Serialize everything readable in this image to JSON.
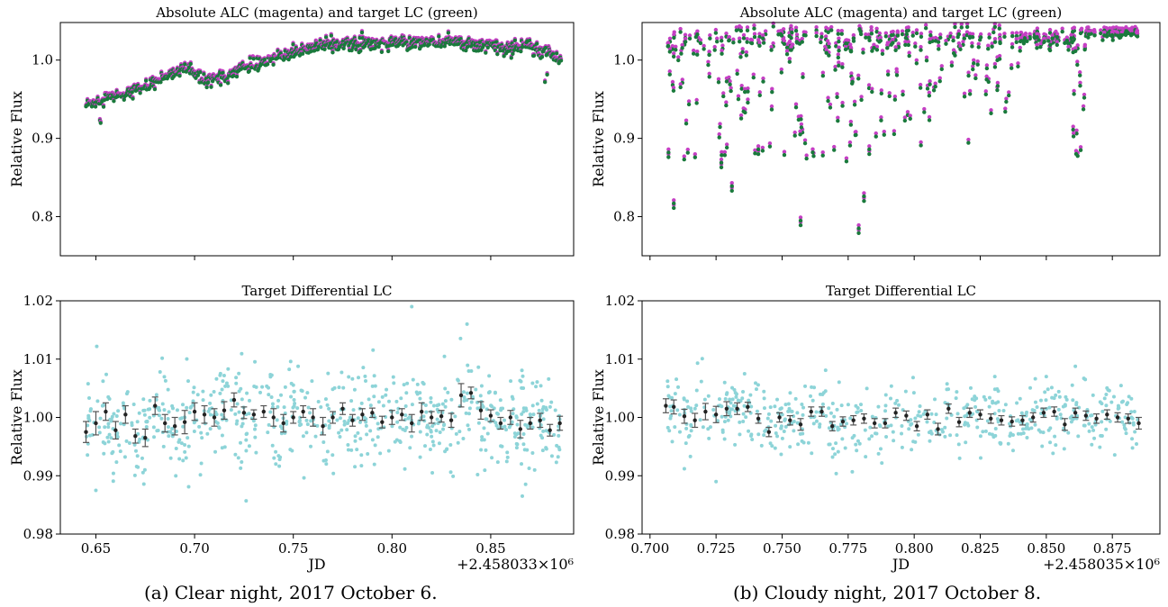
{
  "colors": {
    "target": "#1a7a3c",
    "alc": "#c53fc4",
    "diff_points": "#8dd4d8",
    "binned": "#222222",
    "axis": "#000000"
  },
  "captions": {
    "left": "(a) Clear night, 2017 October 6.",
    "right": "(b) Cloudy night, 2017 October 8."
  },
  "chart_data": [
    {
      "type": "scatter",
      "title": "Absolute ALC (magenta) and target LC (green)",
      "xlabel": "",
      "ylabel": "Relative Flux",
      "xlim": [
        0.632,
        0.892
      ],
      "ylim": [
        0.75,
        1.048
      ],
      "xticks": [
        0.65,
        0.7,
        0.75,
        0.8,
        0.85
      ],
      "xticklabels_visible": false,
      "yticks": [
        0.8,
        0.9,
        1.0
      ],
      "yticklabels": [
        "0.8",
        "0.9",
        "1.0"
      ],
      "grid": false,
      "series": [
        {
          "name": "magenta",
          "color": "#c53fc4",
          "trend": {
            "x": [
              0.645,
              0.655,
              0.665,
              0.675,
              0.685,
              0.695,
              0.705,
              0.715,
              0.725,
              0.735,
              0.745,
              0.755,
              0.765,
              0.775,
              0.785,
              0.795,
              0.805,
              0.815,
              0.825,
              0.835,
              0.845,
              0.855,
              0.865,
              0.875,
              0.885
            ],
            "y": [
              0.942,
              0.952,
              0.957,
              0.966,
              0.978,
              0.99,
              0.972,
              0.978,
              0.99,
              0.998,
              1.005,
              1.012,
              1.018,
              1.021,
              1.02,
              1.02,
              1.022,
              1.023,
              1.022,
              1.022,
              1.019,
              1.014,
              1.018,
              1.01,
              1.003
            ]
          },
          "n_points": 650
        },
        {
          "name": "green",
          "color": "#1a7a3c",
          "trend": {
            "x": [
              0.645,
              0.655,
              0.665,
              0.675,
              0.685,
              0.695,
              0.705,
              0.715,
              0.725,
              0.735,
              0.745,
              0.755,
              0.765,
              0.775,
              0.785,
              0.795,
              0.805,
              0.815,
              0.825,
              0.835,
              0.845,
              0.855,
              0.865,
              0.875,
              0.885
            ],
            "y": [
              0.942,
              0.952,
              0.957,
              0.966,
              0.978,
              0.99,
              0.972,
              0.978,
              0.99,
              0.998,
              1.005,
              1.012,
              1.018,
              1.021,
              1.02,
              1.02,
              1.022,
              1.023,
              1.022,
              1.022,
              1.019,
              1.014,
              1.018,
              1.01,
              1.003
            ]
          },
          "n_points": 650
        }
      ]
    },
    {
      "type": "scatter",
      "title": "Absolute ALC (magenta) and target LC (green)",
      "xlabel": "",
      "ylabel": "Relative Flux",
      "xlim": [
        0.697,
        0.893
      ],
      "ylim": [
        0.75,
        1.048
      ],
      "xticks": [
        0.7,
        0.725,
        0.75,
        0.775,
        0.8,
        0.825,
        0.85,
        0.875
      ],
      "xticklabels_visible": false,
      "yticks": [
        0.8,
        0.9,
        1.0
      ],
      "yticklabels": [
        "0.8",
        "0.9",
        "1.0"
      ],
      "grid": false,
      "series": [
        {
          "name": "magenta",
          "color": "#c53fc4",
          "upper_envelope_y": 1.035,
          "min_y": 0.777,
          "n_points": 500
        },
        {
          "name": "green",
          "color": "#1a7a3c",
          "upper_envelope_y": 1.035,
          "min_y": 0.78,
          "n_points": 500
        }
      ],
      "cloud_dips": [
        {
          "x": 0.707,
          "y": 0.876
        },
        {
          "x": 0.709,
          "y": 0.811
        },
        {
          "x": 0.727,
          "y": 0.863
        },
        {
          "x": 0.731,
          "y": 0.833
        },
        {
          "x": 0.741,
          "y": 0.88
        },
        {
          "x": 0.757,
          "y": 0.789
        },
        {
          "x": 0.779,
          "y": 0.779
        },
        {
          "x": 0.781,
          "y": 0.82
        },
        {
          "x": 0.783,
          "y": 0.88
        }
      ]
    },
    {
      "type": "scatter",
      "title": "Target Differential LC",
      "xlabel": "JD",
      "ylabel": "Relative Flux",
      "offset_label": "+2.458033×10⁶",
      "xlim": [
        0.632,
        0.892
      ],
      "ylim": [
        0.98,
        1.02
      ],
      "xticks": [
        0.65,
        0.7,
        0.75,
        0.8,
        0.85
      ],
      "xticklabels": [
        "0.65",
        "0.70",
        "0.75",
        "0.80",
        "0.85"
      ],
      "yticks": [
        0.98,
        0.99,
        1.0,
        1.01,
        1.02
      ],
      "yticklabels": [
        "0.98",
        "0.99",
        "1.00",
        "1.01",
        "1.02"
      ],
      "grid": false,
      "points": {
        "color": "#8dd4d8",
        "center_y": 1.0,
        "spread_y": 0.004,
        "n_points": 700,
        "outliers": [
          {
            "x": 0.81,
            "y": 1.019
          },
          {
            "x": 0.838,
            "y": 1.016
          },
          {
            "x": 0.866,
            "y": 0.9865
          },
          {
            "x": 0.65,
            "y": 0.9875
          },
          {
            "x": 0.697,
            "y": 0.9881
          }
        ]
      },
      "binned": {
        "x": [
          0.645,
          0.65,
          0.655,
          0.66,
          0.665,
          0.67,
          0.675,
          0.68,
          0.685,
          0.69,
          0.695,
          0.7,
          0.705,
          0.71,
          0.715,
          0.72,
          0.725,
          0.73,
          0.735,
          0.74,
          0.745,
          0.75,
          0.755,
          0.76,
          0.765,
          0.77,
          0.775,
          0.78,
          0.785,
          0.79,
          0.795,
          0.8,
          0.805,
          0.81,
          0.815,
          0.82,
          0.825,
          0.83,
          0.835,
          0.84,
          0.845,
          0.85,
          0.855,
          0.86,
          0.865,
          0.87,
          0.875,
          0.88,
          0.885
        ],
        "y": [
          0.9975,
          0.999,
          1.001,
          0.9978,
          1.0005,
          0.9968,
          0.9965,
          1.002,
          0.999,
          0.9985,
          0.9992,
          1.001,
          1.0005,
          1.0,
          1.0012,
          1.003,
          1.0008,
          1.0005,
          1.001,
          1.0,
          0.999,
          1.0,
          1.001,
          1.0,
          0.9985,
          1.0,
          1.0015,
          0.9995,
          1.0005,
          1.0008,
          0.9992,
          1.0,
          1.0005,
          0.999,
          1.001,
          1.0,
          1.0002,
          0.9995,
          1.0038,
          1.0042,
          1.0012,
          1.0003,
          0.999,
          1.0,
          0.998,
          0.999,
          0.9995,
          0.9978,
          0.999
        ],
        "err": [
          0.0018,
          0.002,
          0.0015,
          0.0015,
          0.0015,
          0.0012,
          0.0015,
          0.0015,
          0.0015,
          0.0015,
          0.002,
          0.0015,
          0.0015,
          0.0015,
          0.0015,
          0.0012,
          0.001,
          0.0008,
          0.001,
          0.0015,
          0.0015,
          0.001,
          0.001,
          0.0015,
          0.0015,
          0.001,
          0.001,
          0.001,
          0.001,
          0.0008,
          0.001,
          0.0012,
          0.001,
          0.0015,
          0.0015,
          0.001,
          0.001,
          0.0012,
          0.002,
          0.001,
          0.0015,
          0.001,
          0.001,
          0.0012,
          0.0015,
          0.001,
          0.0012,
          0.001,
          0.0012
        ]
      }
    },
    {
      "type": "scatter",
      "title": "Target Differential LC",
      "xlabel": "JD",
      "ylabel": "Relative Flux",
      "offset_label": "+2.458035×10⁶",
      "xlim": [
        0.697,
        0.893
      ],
      "ylim": [
        0.98,
        1.02
      ],
      "xticks": [
        0.7,
        0.725,
        0.75,
        0.775,
        0.8,
        0.825,
        0.85,
        0.875
      ],
      "xticklabels": [
        "0.700",
        "0.725",
        "0.750",
        "0.775",
        "0.800",
        "0.825",
        "0.850",
        "0.875"
      ],
      "yticks": [
        0.98,
        0.99,
        1.0,
        1.01,
        1.02
      ],
      "yticklabels": [
        "0.98",
        "0.99",
        "1.00",
        "1.01",
        "1.02"
      ],
      "grid": false,
      "points": {
        "color": "#8dd4d8",
        "center_y": 1.0,
        "spread_y": 0.0028,
        "n_points": 550,
        "outliers": [
          {
            "x": 0.725,
            "y": 0.989
          },
          {
            "x": 0.713,
            "y": 0.9912
          },
          {
            "x": 0.85,
            "y": 1.007
          },
          {
            "x": 0.718,
            "y": 1.0093
          }
        ]
      },
      "binned": {
        "x": [
          0.706,
          0.709,
          0.713,
          0.717,
          0.721,
          0.725,
          0.729,
          0.733,
          0.737,
          0.741,
          0.745,
          0.749,
          0.753,
          0.757,
          0.761,
          0.765,
          0.769,
          0.773,
          0.777,
          0.781,
          0.785,
          0.789,
          0.793,
          0.797,
          0.801,
          0.805,
          0.809,
          0.813,
          0.817,
          0.821,
          0.825,
          0.829,
          0.833,
          0.837,
          0.841,
          0.845,
          0.849,
          0.853,
          0.857,
          0.861,
          0.865,
          0.869,
          0.873,
          0.877,
          0.881,
          0.885
        ],
        "y": [
          1.002,
          1.0018,
          1.0002,
          0.9995,
          1.001,
          1.0005,
          1.0015,
          1.0015,
          1.0018,
          0.9998,
          0.9975,
          1.0,
          0.9995,
          0.9988,
          1.001,
          1.001,
          0.9985,
          0.9993,
          0.9995,
          0.9998,
          0.999,
          0.999,
          1.0008,
          1.0003,
          0.9985,
          1.0005,
          0.998,
          1.0015,
          0.9992,
          1.0008,
          1.0005,
          0.9998,
          0.9995,
          0.9993,
          0.9995,
          1.0,
          1.0008,
          1.001,
          0.9988,
          1.0008,
          1.0003,
          0.9998,
          1.0005,
          1.0,
          0.9998,
          0.999
        ],
        "err": [
          0.0012,
          0.0012,
          0.0012,
          0.0012,
          0.0014,
          0.0014,
          0.0012,
          0.001,
          0.0008,
          0.0008,
          0.0008,
          0.0008,
          0.0008,
          0.001,
          0.0008,
          0.0008,
          0.0008,
          0.0008,
          0.0008,
          0.0008,
          0.0008,
          0.0008,
          0.0008,
          0.0008,
          0.0008,
          0.0008,
          0.001,
          0.0008,
          0.0008,
          0.0008,
          0.0008,
          0.0008,
          0.0008,
          0.0008,
          0.0008,
          0.0008,
          0.0008,
          0.0008,
          0.001,
          0.0008,
          0.0008,
          0.0008,
          0.0008,
          0.0008,
          0.0008,
          0.001
        ]
      }
    }
  ]
}
